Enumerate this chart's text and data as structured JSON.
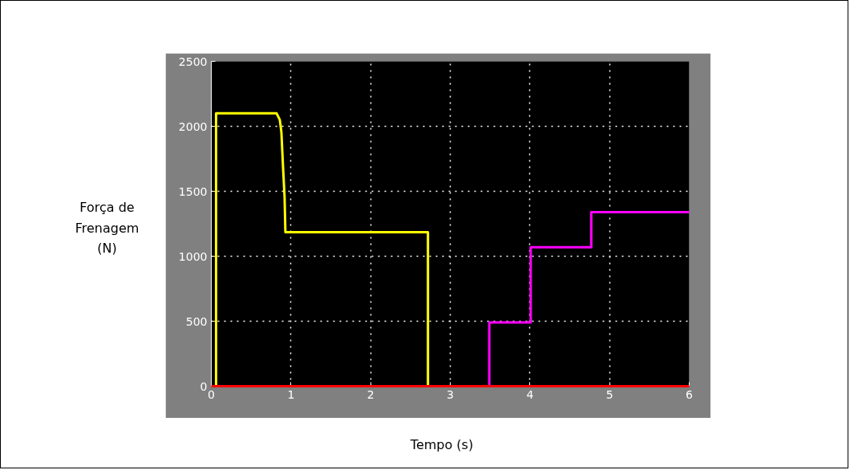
{
  "chart_data": {
    "type": "line",
    "xlabel": "Tempo (s)",
    "ylabel": "Força de\nFrenagem\n(N)",
    "xlim": [
      0,
      6
    ],
    "ylim": [
      0,
      2500
    ],
    "xticks": [
      0,
      1,
      2,
      3,
      4,
      5,
      6
    ],
    "yticks": [
      0,
      500,
      1000,
      1500,
      2000,
      2500
    ],
    "grid": true,
    "line_style": "solid",
    "series": [
      {
        "color": "#ffff00",
        "x": [
          0.06,
          0.06,
          0.82,
          0.86,
          0.88,
          0.9,
          0.92,
          0.93,
          2.72,
          2.72
        ],
        "values": [
          0,
          2100,
          2100,
          2050,
          1955,
          1694,
          1458,
          1185,
          1185,
          0
        ]
      },
      {
        "color": "#ff00ff",
        "x": [
          3.49,
          3.49,
          4.01,
          4.01,
          4.77,
          4.77,
          6
        ],
        "values": [
          0,
          490,
          490,
          1070,
          1070,
          1340,
          1340
        ]
      },
      {
        "color": "#ff0000",
        "x": [
          0,
          6
        ],
        "values": [
          0,
          0
        ]
      }
    ]
  }
}
